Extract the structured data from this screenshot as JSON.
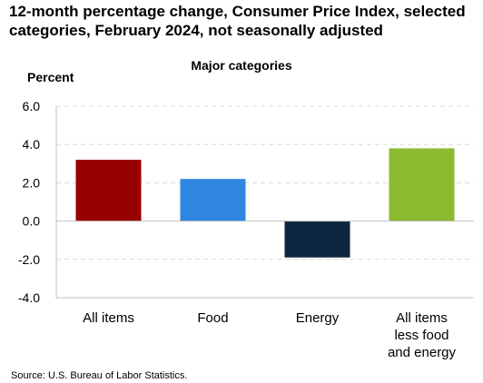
{
  "chart_data": {
    "type": "bar",
    "title": "12-month percentage change, Consumer Price Index, selected categories, February 2024, not seasonally adjusted",
    "subtitle": "Major categories",
    "ylabel": "Percent",
    "xlabel": "",
    "ylim": [
      -4.0,
      6.0
    ],
    "yticks": [
      "6.0",
      "4.0",
      "2.0",
      "0.0",
      "-2.0",
      "-4.0"
    ],
    "categories": [
      [
        "All items"
      ],
      [
        "Food"
      ],
      [
        "Energy"
      ],
      [
        "All items",
        "less food",
        "and energy"
      ]
    ],
    "values": [
      3.2,
      2.2,
      -1.9,
      3.8
    ],
    "colors": [
      "#990000",
      "#2e86de",
      "#0e2640",
      "#8bbb2e"
    ],
    "grid": true,
    "legend": "none"
  },
  "source": "Source: U.S. Bureau of Labor Statistics."
}
